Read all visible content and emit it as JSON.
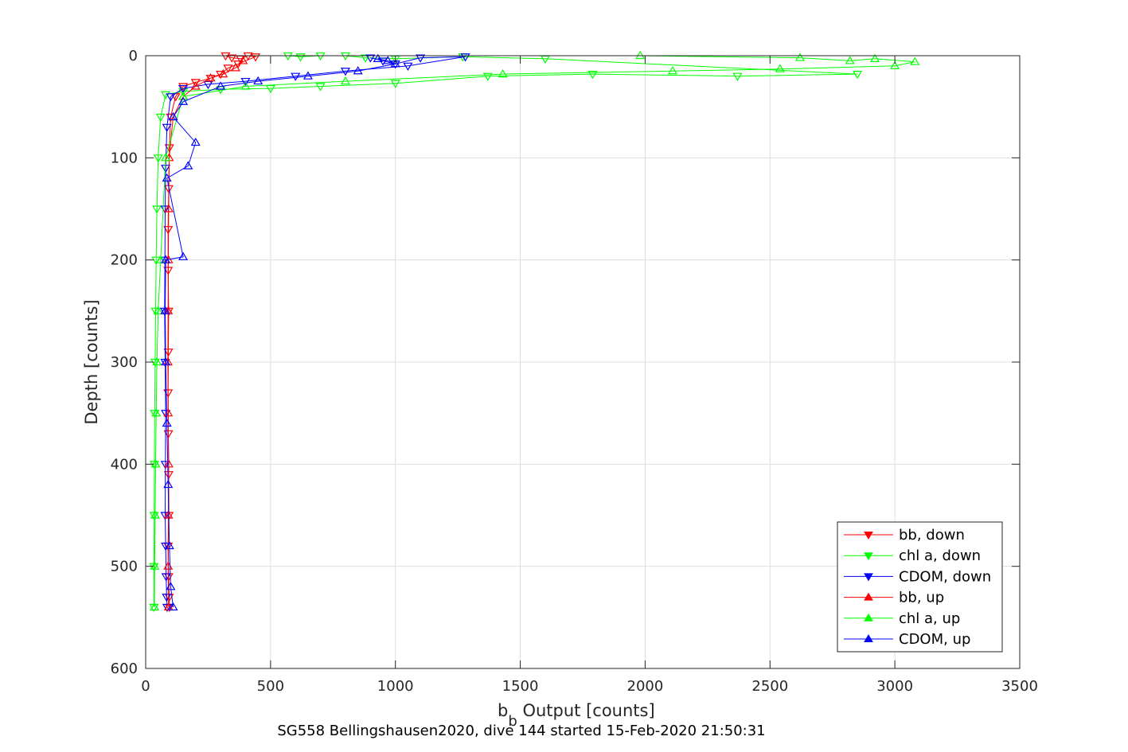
{
  "chart_data": {
    "type": "line",
    "xlabel": "b",
    "xlabel_sub": "b",
    "xlabel_rest": " Output [counts]",
    "ylabel": "Depth [counts]",
    "caption": "SG558 Bellingshausen2020, dive 144 started 15-Feb-2020 21:50:31",
    "xlim": [
      0,
      3500
    ],
    "ylim": [
      0,
      600
    ],
    "y_reversed": true,
    "grid": true,
    "legend_position": "bottom-right",
    "xticks": [
      0,
      500,
      1000,
      1500,
      2000,
      2500,
      3000,
      3500
    ],
    "xtick_labels": [
      "0",
      "500",
      "1000",
      "1500",
      "2000",
      "2500",
      "3000",
      "3500"
    ],
    "yticks": [
      0,
      100,
      200,
      300,
      400,
      500,
      600
    ],
    "ytick_labels": [
      "0",
      "100",
      "200",
      "300",
      "400",
      "500",
      "600"
    ],
    "series": [
      {
        "name": "bb, down",
        "color": "#ff0000",
        "marker": "triangle-down",
        "x": [
          320,
          345,
          380,
          410,
          440,
          370,
          330,
          300,
          260,
          200,
          150,
          120,
          100,
          95,
          92,
          90,
          90,
          92,
          91,
          90,
          91,
          92,
          93,
          90,
          92,
          94,
          95
        ],
        "y": [
          0,
          2,
          3,
          0,
          1,
          8,
          12,
          18,
          22,
          26,
          30,
          40,
          60,
          90,
          130,
          170,
          210,
          250,
          290,
          330,
          370,
          410,
          450,
          480,
          510,
          530,
          540
        ]
      },
      {
        "name": "chl a, down",
        "color": "#00ff00",
        "marker": "triangle-down",
        "x": [
          570,
          620,
          700,
          800,
          880,
          1000,
          1270,
          1600,
          2850,
          2370,
          1790,
          1370,
          1000,
          700,
          500,
          300,
          150,
          80,
          60,
          50,
          45,
          42,
          40,
          38,
          36,
          35,
          34,
          33,
          33
        ],
        "y": [
          0,
          1,
          0,
          0,
          2,
          3,
          1,
          3,
          18,
          20,
          18,
          20,
          27,
          30,
          32,
          33,
          35,
          38,
          60,
          100,
          150,
          200,
          250,
          300,
          350,
          400,
          450,
          500,
          540
        ]
      },
      {
        "name": "CDOM, down",
        "color": "#0000ff",
        "marker": "triangle-down",
        "x": [
          900,
          950,
          1000,
          1100,
          1280,
          1050,
          800,
          600,
          400,
          250,
          150,
          100,
          85,
          80,
          78,
          77,
          76,
          78,
          80,
          79,
          78,
          80,
          82,
          84,
          86
        ],
        "y": [
          2,
          5,
          8,
          2,
          1,
          10,
          15,
          20,
          25,
          28,
          32,
          40,
          70,
          110,
          150,
          200,
          250,
          300,
          350,
          400,
          450,
          480,
          510,
          530,
          540
        ]
      },
      {
        "name": "bb, up",
        "color": "#ff0000",
        "marker": "triangle-up",
        "x": [
          92,
          90,
          91,
          92,
          90,
          89,
          90,
          91,
          92,
          94,
          110,
          150,
          200,
          260,
          310,
          360,
          390
        ],
        "y": [
          540,
          500,
          450,
          400,
          350,
          300,
          250,
          200,
          150,
          100,
          60,
          40,
          30,
          22,
          18,
          12,
          5
        ]
      },
      {
        "name": "chl a, up",
        "color": "#00ff00",
        "marker": "triangle-up",
        "x": [
          35,
          36,
          38,
          40,
          42,
          45,
          50,
          60,
          80,
          150,
          400,
          800,
          1430,
          2110,
          2540,
          3000,
          3080,
          2920,
          2820,
          2620,
          1980
        ],
        "y": [
          540,
          500,
          450,
          400,
          350,
          300,
          250,
          200,
          100,
          40,
          30,
          25,
          18,
          15,
          13,
          10,
          6,
          3,
          5,
          2,
          0
        ]
      },
      {
        "name": "CDOM, up",
        "color": "#0000ff",
        "marker": "triangle-up",
        "x": [
          110,
          100,
          95,
          90,
          85,
          80,
          78,
          80,
          150,
          85,
          170,
          200,
          110,
          150,
          300,
          450,
          650,
          850,
          1000,
          970,
          930
        ],
        "y": [
          540,
          520,
          480,
          420,
          360,
          300,
          250,
          200,
          197,
          120,
          108,
          85,
          60,
          45,
          30,
          25,
          20,
          15,
          8,
          5,
          3
        ]
      }
    ]
  }
}
